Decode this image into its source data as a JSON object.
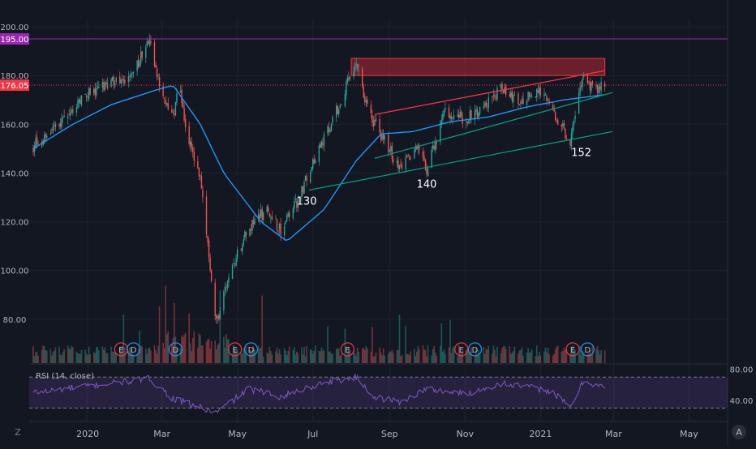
{
  "chart_data": {
    "type": "candlestick",
    "x_labels": [
      {
        "label": "2020",
        "date": "2020-01-01"
      },
      {
        "label": "Mar",
        "date": "2020-03-01"
      },
      {
        "label": "May",
        "date": "2020-05-01"
      },
      {
        "label": "Jul",
        "date": "2020-07-01"
      },
      {
        "label": "Sep",
        "date": "2020-09-01"
      },
      {
        "label": "Nov",
        "date": "2020-11-01"
      },
      {
        "label": "2021",
        "date": "2021-01-01"
      },
      {
        "label": "Mar",
        "date": "2021-03-01"
      },
      {
        "label": "May",
        "date": "2021-05-01"
      }
    ],
    "price_axis": {
      "ylim": [
        62,
        203
      ],
      "ticks": [
        "200.00",
        "180.00",
        "160.00",
        "140.00",
        "120.00",
        "100.00",
        "80.00"
      ],
      "tick_values": [
        200,
        180,
        160,
        140,
        120,
        100,
        80
      ]
    },
    "price_key_points": [
      {
        "date": "2019-11-18",
        "price": 151
      },
      {
        "date": "2019-12-10",
        "price": 160
      },
      {
        "date": "2019-12-25",
        "price": 170
      },
      {
        "date": "2020-01-15",
        "price": 176
      },
      {
        "date": "2020-02-05",
        "price": 180
      },
      {
        "date": "2020-02-20",
        "price": 194
      },
      {
        "date": "2020-03-01",
        "price": 172
      },
      {
        "date": "2020-03-10",
        "price": 162
      },
      {
        "date": "2020-03-15",
        "price": 176
      },
      {
        "date": "2020-03-20",
        "price": 158
      },
      {
        "date": "2020-04-01",
        "price": 138
      },
      {
        "date": "2020-04-10",
        "price": 95
      },
      {
        "date": "2020-04-14",
        "price": 78
      },
      {
        "date": "2020-04-20",
        "price": 90
      },
      {
        "date": "2020-05-05",
        "price": 112
      },
      {
        "date": "2020-05-15",
        "price": 120
      },
      {
        "date": "2020-05-25",
        "price": 125
      },
      {
        "date": "2020-06-05",
        "price": 116
      },
      {
        "date": "2020-06-20",
        "price": 130
      },
      {
        "date": "2020-07-05",
        "price": 150
      },
      {
        "date": "2020-07-20",
        "price": 165
      },
      {
        "date": "2020-08-05",
        "price": 186
      },
      {
        "date": "2020-08-15",
        "price": 165
      },
      {
        "date": "2020-09-01",
        "price": 150
      },
      {
        "date": "2020-09-10",
        "price": 141
      },
      {
        "date": "2020-09-25",
        "price": 152
      },
      {
        "date": "2020-10-01",
        "price": 140
      },
      {
        "date": "2020-10-15",
        "price": 165
      },
      {
        "date": "2020-11-01",
        "price": 162
      },
      {
        "date": "2020-11-15",
        "price": 166
      },
      {
        "date": "2020-12-01",
        "price": 175
      },
      {
        "date": "2020-12-15",
        "price": 170
      },
      {
        "date": "2021-01-01",
        "price": 173
      },
      {
        "date": "2021-01-15",
        "price": 162
      },
      {
        "date": "2021-01-25",
        "price": 152
      },
      {
        "date": "2021-02-05",
        "price": 182
      },
      {
        "date": "2021-02-12",
        "price": 174
      },
      {
        "date": "2021-02-20",
        "price": 177
      }
    ],
    "moving_average_key_points": [
      {
        "date": "2019-11-18",
        "price": 150
      },
      {
        "date": "2019-12-20",
        "price": 160
      },
      {
        "date": "2020-01-20",
        "price": 168
      },
      {
        "date": "2020-02-25",
        "price": 174
      },
      {
        "date": "2020-03-10",
        "price": 176
      },
      {
        "date": "2020-04-01",
        "price": 160
      },
      {
        "date": "2020-04-20",
        "price": 140
      },
      {
        "date": "2020-05-20",
        "price": 120
      },
      {
        "date": "2020-06-10",
        "price": 112
      },
      {
        "date": "2020-07-10",
        "price": 125
      },
      {
        "date": "2020-08-05",
        "price": 145
      },
      {
        "date": "2020-08-25",
        "price": 156
      },
      {
        "date": "2020-09-20",
        "price": 157
      },
      {
        "date": "2020-10-20",
        "price": 161
      },
      {
        "date": "2020-11-20",
        "price": 163
      },
      {
        "date": "2020-12-20",
        "price": 167
      },
      {
        "date": "2021-01-20",
        "price": 170
      },
      {
        "date": "2021-02-20",
        "price": 172
      }
    ],
    "horizontal_lines": [
      {
        "price": 195,
        "label": "195.00",
        "color": "#9c27b0",
        "style": "solid"
      },
      {
        "price": 176.05,
        "label": "176.05",
        "color": "#f23645",
        "style": "dotted"
      }
    ],
    "resistance_zone": {
      "x_start": "2020-08-01",
      "x_end": "2021-02-22",
      "y_low": 180,
      "y_high": 187,
      "color": "#b22833"
    },
    "trendlines": [
      {
        "color": "#089981",
        "start": {
          "date": "2020-06-28",
          "price": 133
        },
        "end": {
          "date": "2021-02-28",
          "price": 157
        }
      },
      {
        "color": "#089981",
        "start": {
          "date": "2020-08-20",
          "price": 146
        },
        "end": {
          "date": "2021-02-28",
          "price": 173
        }
      },
      {
        "color": "#f23645",
        "start": {
          "date": "2020-08-20",
          "price": 164
        },
        "end": {
          "date": "2021-02-22",
          "price": 182
        }
      }
    ],
    "annotations": [
      {
        "text": "130",
        "date": "2020-06-26",
        "price": 127
      },
      {
        "text": "140",
        "date": "2020-10-01",
        "price": 134
      },
      {
        "text": "152",
        "date": "2021-02-03",
        "price": 147
      }
    ],
    "earnings_markers": [
      {
        "kind": "E",
        "date": "2020-01-28"
      },
      {
        "kind": "D",
        "date": "2020-02-07"
      },
      {
        "kind": "D",
        "date": "2020-03-12"
      },
      {
        "kind": "E",
        "date": "2020-04-29"
      },
      {
        "kind": "D",
        "date": "2020-05-12"
      },
      {
        "kind": "E",
        "date": "2020-07-29"
      },
      {
        "kind": "E",
        "date": "2020-10-29"
      },
      {
        "kind": "D",
        "date": "2020-11-09"
      },
      {
        "kind": "E",
        "date": "2021-01-27"
      },
      {
        "kind": "D",
        "date": "2021-02-08"
      }
    ],
    "rsi": {
      "label": "RSI (14, close)",
      "ylim": [
        18,
        86
      ],
      "band_upper": 70,
      "band_lower": 30,
      "ticks": [
        "80.00",
        "40.00"
      ],
      "tick_values": [
        80,
        40
      ],
      "key_points": [
        {
          "date": "2019-11-18",
          "value": 50
        },
        {
          "date": "2020-01-20",
          "value": 62
        },
        {
          "date": "2020-02-20",
          "value": 68
        },
        {
          "date": "2020-03-10",
          "value": 42
        },
        {
          "date": "2020-04-14",
          "value": 24
        },
        {
          "date": "2020-05-10",
          "value": 55
        },
        {
          "date": "2020-06-05",
          "value": 45
        },
        {
          "date": "2020-07-10",
          "value": 63
        },
        {
          "date": "2020-08-05",
          "value": 70
        },
        {
          "date": "2020-08-20",
          "value": 44
        },
        {
          "date": "2020-09-10",
          "value": 38
        },
        {
          "date": "2020-10-01",
          "value": 55
        },
        {
          "date": "2020-11-01",
          "value": 48
        },
        {
          "date": "2020-12-01",
          "value": 62
        },
        {
          "date": "2021-01-10",
          "value": 52
        },
        {
          "date": "2021-01-25",
          "value": 30
        },
        {
          "date": "2021-02-05",
          "value": 66
        },
        {
          "date": "2021-02-20",
          "value": 57
        }
      ]
    },
    "colors": {
      "background": "#131722",
      "up": "#26a69a",
      "down": "#ef5350",
      "ma": "#2196f3",
      "rsi": "#7e57c2",
      "grid": "#1e222d",
      "text": "#b2b5be"
    }
  },
  "toolbar": {
    "left_letter": "Z",
    "right_letter": "A"
  }
}
